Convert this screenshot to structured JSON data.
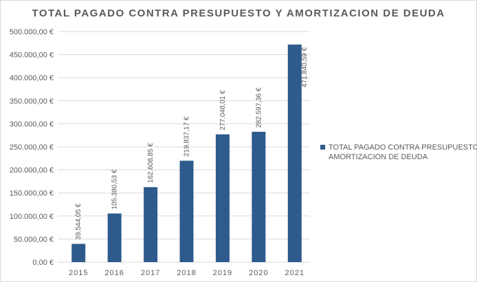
{
  "chart_data": {
    "type": "bar",
    "title": "TOTAL PAGADO CONTRA PRESUPUESTO Y AMORTIZACION DE DEUDA",
    "categories": [
      "2015",
      "2016",
      "2017",
      "2018",
      "2019",
      "2020",
      "2021"
    ],
    "series": [
      {
        "name": "TOTAL PAGADO CONTRA PRESUPUESTO Y AMORTIZACION DE DEUDA",
        "values": [
          39544.05,
          105380.53,
          162608.85,
          219837.17,
          277048.01,
          282597.36,
          471840.59
        ],
        "labels": [
          "39.544,05 €",
          "105.380,53 €",
          "162.608,85 €",
          "219.837,17 €",
          "277.048,01 €",
          "282.597,36 €",
          "471.840,59 €"
        ],
        "color": "#2e5b8c"
      }
    ],
    "yticks": [
      "0,00 €",
      "50.000,00 €",
      "100.000,00 €",
      "150.000,00 €",
      "200.000,00 €",
      "250.000,00 €",
      "300.000,00 €",
      "350.000,00 €",
      "400.000,00 €",
      "450.000,00 €",
      "500.000,00 €"
    ],
    "ylim": [
      0,
      500000
    ],
    "ystep": 50000,
    "legend_lines": [
      "TOTAL PAGADO CONTRA PRESUPUESTO Y",
      "AMORTIZACION DE DEUDA"
    ],
    "legend_position": "right",
    "grid": true,
    "colors": {
      "bar": "#2e5b8c",
      "grid": "#d9d9d9",
      "text": "#595959"
    }
  }
}
